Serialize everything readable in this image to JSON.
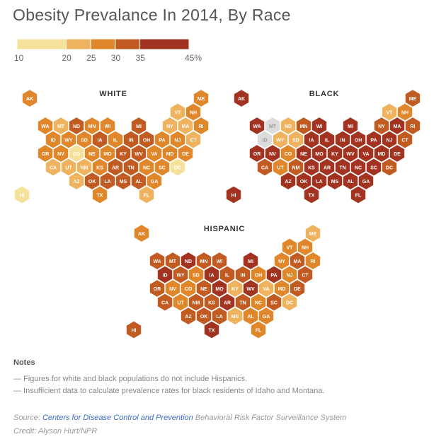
{
  "title": "Obesity Prevalance In 2014, By Race",
  "legend": {
    "bins": [
      {
        "range": "10-20",
        "color": "#f6e19b"
      },
      {
        "range": "20-25",
        "color": "#efb35f"
      },
      {
        "range": "25-30",
        "color": "#e0872b"
      },
      {
        "range": "30-35",
        "color": "#c15b22"
      },
      {
        "range": "35-45",
        "color": "#a23320"
      }
    ],
    "no_data_color": "#dcdcdc",
    "tick_labels": [
      "10",
      "20",
      "25",
      "30",
      "35",
      "45%"
    ]
  },
  "chart_data": [
    {
      "type": "hex-tile-map",
      "title": "WHITE",
      "states": {
        "AK": "25-30",
        "ME": "25-30",
        "VT": "20-25",
        "NH": "25-30",
        "WA": "25-30",
        "MT": "20-25",
        "ND": "30-35",
        "MN": "25-30",
        "WI": "25-30",
        "MI": "30-35",
        "NY": "20-25",
        "MA": "20-25",
        "RI": "25-30",
        "ID": "25-30",
        "WY": "25-30",
        "SD": "25-30",
        "IA": "30-35",
        "IL": "25-30",
        "IN": "30-35",
        "OH": "30-35",
        "PA": "25-30",
        "NJ": "25-30",
        "CT": "20-25",
        "OR": "25-30",
        "NV": "25-30",
        "CO": "10-20",
        "NE": "25-30",
        "MO": "25-30",
        "KY": "30-35",
        "WV": "30-35",
        "VA": "25-30",
        "MD": "25-30",
        "DE": "25-30",
        "CA": "20-25",
        "UT": "20-25",
        "NM": "20-25",
        "KS": "25-30",
        "AR": "30-35",
        "TN": "30-35",
        "NC": "25-30",
        "SC": "25-30",
        "DC": "10-20",
        "AZ": "20-25",
        "OK": "30-35",
        "LA": "30-35",
        "MS": "30-35",
        "AL": "30-35",
        "GA": "25-30",
        "TX": "25-30",
        "FL": "20-25",
        "HI": "10-20"
      }
    },
    {
      "type": "hex-tile-map",
      "title": "BLACK",
      "states": {
        "AK": "35-45",
        "ME": "30-35",
        "VT": "20-25",
        "NH": "25-30",
        "WA": "35-45",
        "MT": null,
        "ND": "20-25",
        "MN": "30-35",
        "WI": "35-45",
        "MI": "35-45",
        "NY": "30-35",
        "MA": "35-45",
        "RI": "30-35",
        "ID": null,
        "WY": "20-25",
        "SD": "20-25",
        "IA": "35-45",
        "IL": "35-45",
        "IN": "35-45",
        "OH": "35-45",
        "PA": "35-45",
        "NJ": "35-45",
        "CT": "30-35",
        "OR": "35-45",
        "NV": "35-45",
        "CO": "25-30",
        "NE": "35-45",
        "MO": "35-45",
        "KY": "35-45",
        "WV": "35-45",
        "VA": "35-45",
        "MD": "35-45",
        "DE": "35-45",
        "CA": "30-35",
        "UT": "25-30",
        "NM": "30-35",
        "KS": "35-45",
        "AR": "35-45",
        "TN": "35-45",
        "NC": "35-45",
        "SC": "35-45",
        "DC": "30-35",
        "AZ": "35-45",
        "OK": "35-45",
        "LA": "35-45",
        "MS": "35-45",
        "AL": "35-45",
        "GA": "35-45",
        "TX": "35-45",
        "FL": "35-45",
        "HI": "35-45"
      }
    },
    {
      "type": "hex-tile-map",
      "title": "HISPANIC",
      "states": {
        "AK": "25-30",
        "ME": "20-25",
        "VT": "25-30",
        "NH": "25-30",
        "WA": "30-35",
        "MT": "30-35",
        "ND": "35-45",
        "MN": "30-35",
        "WI": "30-35",
        "MI": "35-45",
        "NY": "25-30",
        "MA": "30-35",
        "RI": "25-30",
        "ID": "35-45",
        "WY": "30-35",
        "SD": "25-30",
        "IA": "35-45",
        "IL": "30-35",
        "IN": "30-35",
        "OH": "25-30",
        "PA": "35-45",
        "NJ": "25-30",
        "CT": "30-35",
        "OR": "30-35",
        "NV": "25-30",
        "CO": "25-30",
        "NE": "30-35",
        "MO": "35-45",
        "KY": "20-25",
        "WV": "35-45",
        "VA": "20-25",
        "MD": "25-30",
        "DE": "30-35",
        "CA": "30-35",
        "UT": "25-30",
        "NM": "30-35",
        "KS": "30-35",
        "AR": "35-45",
        "TN": "30-35",
        "NC": "25-30",
        "SC": "30-35",
        "DC": "20-25",
        "AZ": "30-35",
        "OK": "30-35",
        "LA": "30-35",
        "MS": "20-25",
        "AL": "25-30",
        "GA": "25-30",
        "TX": "35-45",
        "FL": "25-30",
        "HI": "30-35"
      }
    }
  ],
  "notes": {
    "heading": "Notes",
    "items": [
      "— Figures for white and black populations do not include Hispanics.",
      "— Insufficient data to calculate prevalence rates for black residents of Idaho and Montana."
    ]
  },
  "source": {
    "prefix": "Source: ",
    "link": "Centers for Disease Control and Prevention",
    "suffix": " Behavioral Risk Factor Surveillance System"
  },
  "credit": "Credit: Alyson Hurt/NPR"
}
